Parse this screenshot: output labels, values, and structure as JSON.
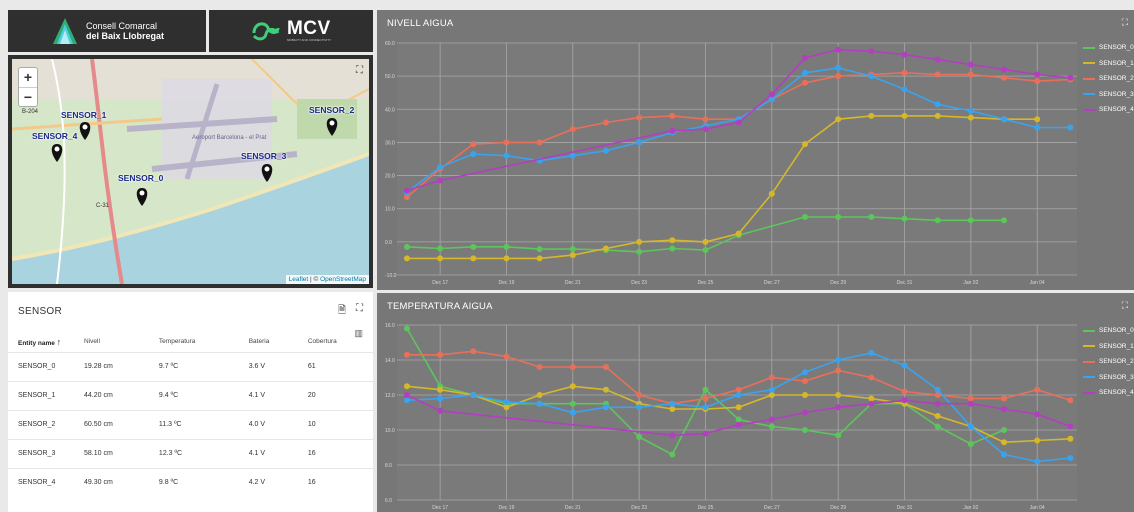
{
  "logos": {
    "ccbl_line1": "Consell Comarcal",
    "ccbl_line2": "del Baix Llobregat",
    "mcv_name": "MCV",
    "mcv_sub": "MOBILITY AND CONNECTIVITY"
  },
  "map": {
    "zoom_in": "+",
    "zoom_out": "−",
    "fullscreen_icon": "expand-icon",
    "attribution_leaflet": "Leaflet",
    "attribution_sep": " | © ",
    "attribution_osm": "OpenStreetMap",
    "road_label_b204": "B-204",
    "road_label_c31": "C-31",
    "place_label_airport": "Aeroport Barcelona - el Prat",
    "markers": [
      {
        "id": "SENSOR_0",
        "label": "SENSOR_0"
      },
      {
        "id": "SENSOR_1",
        "label": "SENSOR_1"
      },
      {
        "id": "SENSOR_2",
        "label": "SENSOR_2"
      },
      {
        "id": "SENSOR_3",
        "label": "SENSOR_3"
      },
      {
        "id": "SENSOR_4",
        "label": "SENSOR_4"
      }
    ]
  },
  "table": {
    "title": "SENSOR",
    "columns": [
      "Entity name",
      "Nivell",
      "Temperatura",
      "Bateria",
      "Cobertura"
    ],
    "rows": [
      [
        "SENSOR_0",
        "19.28 cm",
        "9.7 ºC",
        "3.6 V",
        "61"
      ],
      [
        "SENSOR_1",
        "44.20 cm",
        "9.4 ºC",
        "4.1 V",
        "20"
      ],
      [
        "SENSOR_2",
        "60.50 cm",
        "11.3 ºC",
        "4.0 V",
        "10"
      ],
      [
        "SENSOR_3",
        "58.10 cm",
        "12.3 ºC",
        "4.1 V",
        "16"
      ],
      [
        "SENSOR_4",
        "49.30 cm",
        "9.8 ºC",
        "4.2 V",
        "16"
      ]
    ]
  },
  "colors": {
    "SENSOR_0": "#5cc65c",
    "SENSOR_1": "#d4b82a",
    "SENSOR_2": "#e8705a",
    "SENSOR_3": "#3aa3f0",
    "SENSOR_4": "#b23fc0"
  },
  "chart_data": [
    {
      "type": "line",
      "title": "NIVELL AIGUA",
      "ylim": [
        -10,
        60
      ],
      "yticks": [
        "-10.0",
        "0.0",
        "10.0",
        "20.0",
        "30.0",
        "40.0",
        "50.0",
        "60.0"
      ],
      "xticks": [
        "Dec 17",
        "Dec 19",
        "Dec 21",
        "Dec 23",
        "Dec 25",
        "Dec 27",
        "Dec 29",
        "Dec 31",
        "Jan 02",
        "Jan 04"
      ],
      "x_range_days": [
        15.7,
        36.2
      ],
      "grid": true,
      "legend": "right",
      "series": [
        {
          "name": "SENSOR_0",
          "x": [
            16,
            17,
            18,
            19,
            20,
            21,
            22,
            23,
            24,
            25,
            26,
            28,
            29,
            30,
            31,
            32,
            33,
            34
          ],
          "values": [
            -1.5,
            -2,
            -1.5,
            -1.5,
            -2.2,
            -2.2,
            -2.5,
            -3,
            -2,
            -2.5,
            2,
            7.5,
            7.5,
            7.5,
            7,
            6.5,
            6.5,
            6.5
          ]
        },
        {
          "name": "SENSOR_1",
          "x": [
            16,
            17,
            18,
            19,
            20,
            21,
            22,
            23,
            24,
            25,
            26,
            27,
            28,
            29,
            30,
            31,
            32,
            33,
            34,
            35
          ],
          "values": [
            -5,
            -5,
            -5,
            -5,
            -5,
            -4,
            -2,
            0,
            0.5,
            0,
            2.5,
            14.5,
            29.5,
            37,
            38,
            38,
            38,
            37.5,
            37,
            37
          ]
        },
        {
          "name": "SENSOR_2",
          "x": [
            16,
            17,
            18,
            19,
            20,
            21,
            22,
            23,
            24,
            25,
            26,
            27,
            28,
            29,
            30,
            31,
            32,
            33,
            34,
            35,
            36
          ],
          "values": [
            13.5,
            22,
            29.5,
            30,
            30,
            34,
            36,
            37.5,
            38,
            37,
            37,
            43,
            48,
            50,
            50.5,
            51,
            50.5,
            50.5,
            49.5,
            48.5,
            49
          ]
        },
        {
          "name": "SENSOR_3",
          "x": [
            16,
            17,
            18,
            19,
            20,
            21,
            22,
            23,
            24,
            25,
            26,
            27,
            28,
            29,
            30,
            31,
            32,
            33,
            34,
            35,
            36
          ],
          "values": [
            15,
            22.5,
            26.5,
            26,
            24.5,
            26,
            27.5,
            30,
            33,
            35,
            37,
            43,
            51,
            52.5,
            50,
            46,
            41.5,
            39.5,
            37,
            34.5,
            34.5
          ]
        },
        {
          "name": "SENSOR_4",
          "x": [
            16,
            17,
            24,
            25,
            26,
            27,
            28,
            29,
            30,
            31,
            32,
            33,
            34,
            35,
            36
          ],
          "values": [
            15.5,
            18.5,
            33.5,
            34,
            36,
            44.5,
            55.5,
            58,
            57.5,
            56.5,
            55,
            53.5,
            52,
            50.5,
            49.5
          ]
        }
      ]
    },
    {
      "type": "line",
      "title": "TEMPERATURA AIGUA",
      "ylim": [
        6,
        16
      ],
      "yticks": [
        "6.0",
        "8.0",
        "10.0",
        "12.0",
        "14.0",
        "16.0"
      ],
      "xticks": [
        "Dec 17",
        "Dec 19",
        "Dec 21",
        "Dec 23",
        "Dec 25",
        "Dec 27",
        "Dec 29",
        "Dec 31",
        "Jan 02",
        "Jan 04"
      ],
      "x_range_days": [
        15.7,
        36.2
      ],
      "grid": true,
      "legend": "right",
      "series": [
        {
          "name": "SENSOR_0",
          "x": [
            16,
            17,
            18,
            19,
            20,
            21,
            22,
            23,
            24,
            25,
            26,
            27,
            28,
            29,
            30,
            31,
            32,
            33,
            34
          ],
          "values": [
            15.8,
            12.5,
            12,
            11.5,
            11.5,
            11.5,
            11.5,
            9.6,
            8.6,
            12.3,
            10.6,
            10.2,
            10,
            9.7,
            11.5,
            11.5,
            10.2,
            9.2,
            10
          ],
          "extra": [
            [
              35,
              10
            ]
          ]
        },
        {
          "name": "SENSOR_1",
          "x": [
            16,
            17,
            18,
            19,
            20,
            21,
            22,
            23,
            24,
            25,
            26,
            27,
            28,
            29,
            30,
            31,
            32,
            33,
            34,
            35,
            36
          ],
          "values": [
            12.5,
            12.3,
            12,
            11.3,
            12,
            12.5,
            12.3,
            11.5,
            11.2,
            11.2,
            11.3,
            12,
            12,
            12,
            11.8,
            11.5,
            10.8,
            10.2,
            9.3,
            9.4,
            9.5
          ]
        },
        {
          "name": "SENSOR_2",
          "x": [
            16,
            17,
            18,
            19,
            20,
            21,
            22,
            23,
            24,
            25,
            26,
            27,
            28,
            29,
            30,
            31,
            32,
            33,
            34,
            35,
            36
          ],
          "values": [
            14.3,
            14.3,
            14.5,
            14.2,
            13.6,
            13.6,
            13.6,
            12,
            11.5,
            11.8,
            12.3,
            13,
            12.8,
            13.4,
            13,
            12.2,
            12,
            11.8,
            11.8,
            12.3,
            11.7
          ]
        },
        {
          "name": "SENSOR_3",
          "x": [
            16,
            17,
            18,
            19,
            20,
            21,
            22,
            23,
            24,
            25,
            26,
            27,
            28,
            29,
            30,
            31,
            32,
            33,
            34,
            35,
            36
          ],
          "values": [
            11.7,
            11.8,
            12,
            11.6,
            11.5,
            11,
            11.3,
            11.3,
            11.5,
            11.3,
            12,
            12.3,
            13.3,
            14,
            14.4,
            13.7,
            12.3,
            10.2,
            8.6,
            8.2,
            8.4
          ]
        },
        {
          "name": "SENSOR_4",
          "x": [
            16,
            17,
            24,
            25,
            26,
            27,
            28,
            29,
            30,
            31,
            32,
            33,
            34,
            35,
            36
          ],
          "values": [
            12,
            11.1,
            9.7,
            9.8,
            10.3,
            10.6,
            11,
            11.3,
            11.5,
            11.7,
            11.5,
            11.5,
            11.2,
            10.9,
            10.2
          ]
        }
      ]
    }
  ]
}
